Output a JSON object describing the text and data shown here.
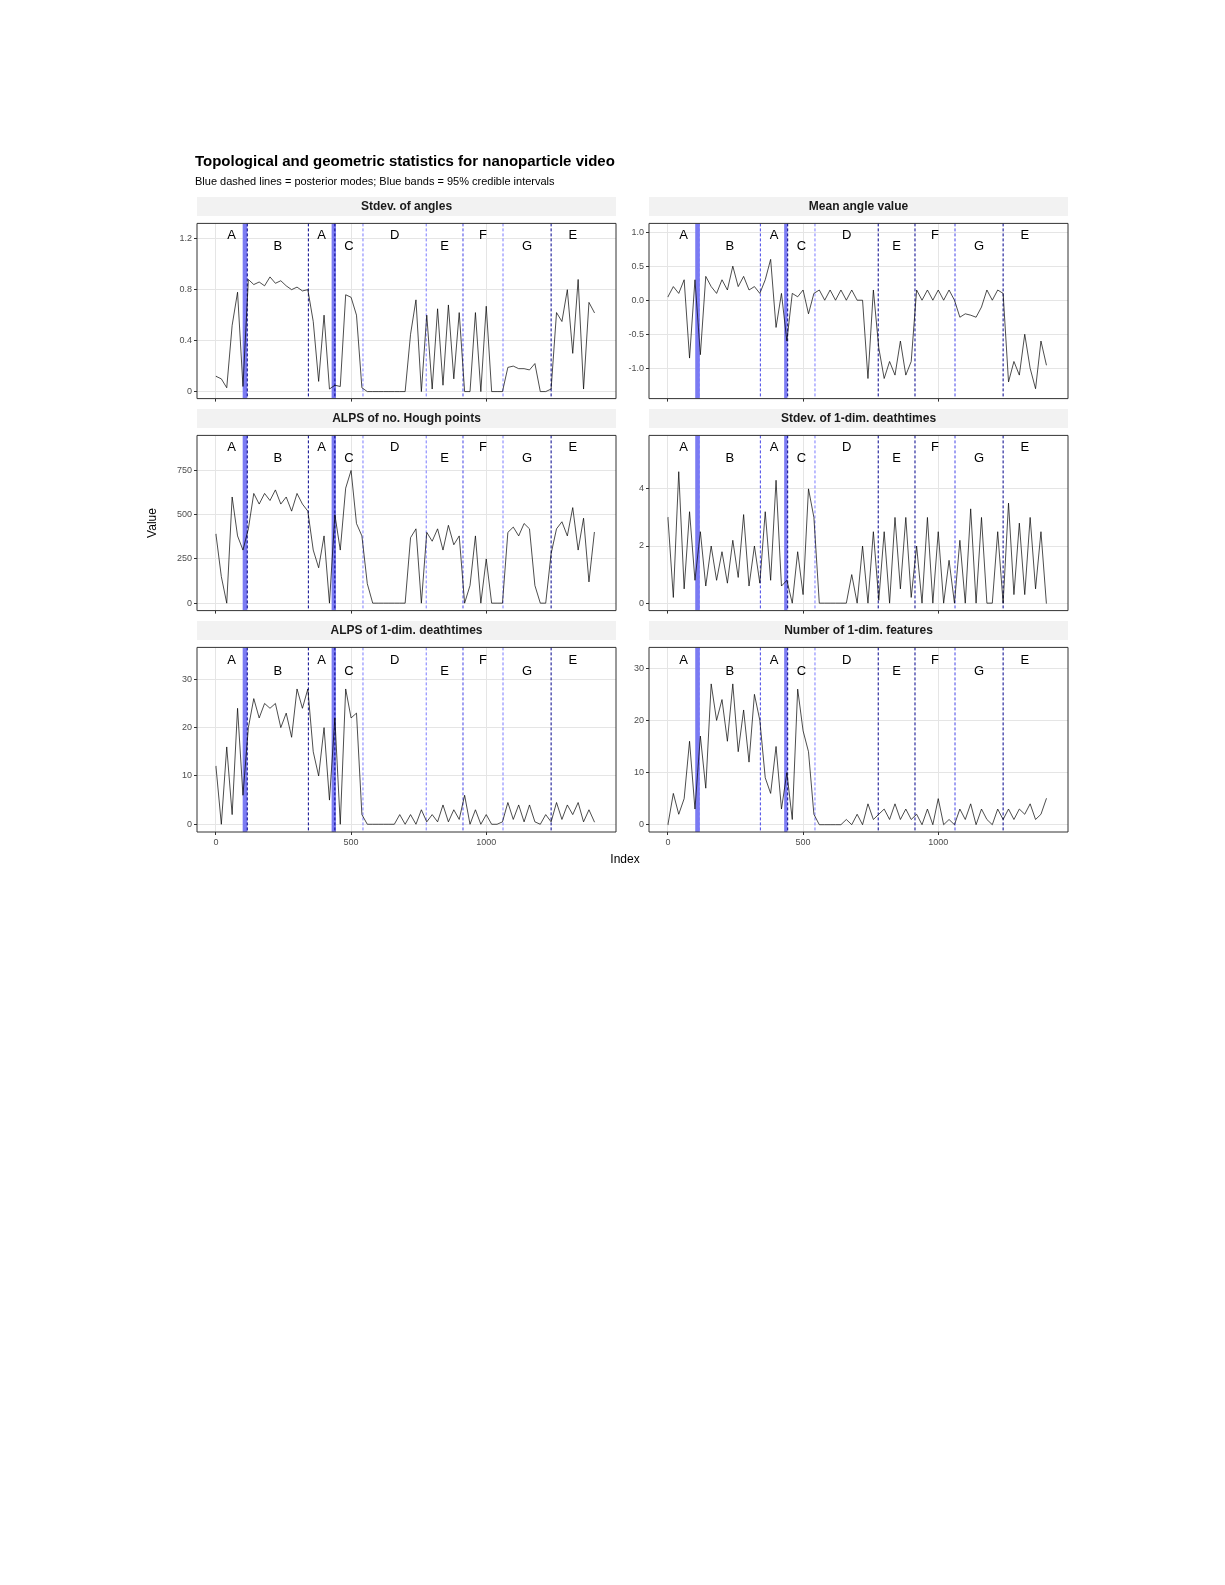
{
  "chart_data": [
    {
      "type": "other",
      "title": "Topological and geometric statistics for nanoparticle video",
      "subtitle": "Blue dashed lines = posterior modes; Blue bands = 95% credible intervals"
    },
    {
      "type": "line",
      "title": "Stdev. of angles",
      "color": "#000000",
      "grid": true,
      "legend": false,
      "tick_labels": "y",
      "xlim": [
        -70,
        1480
      ],
      "ylim": [
        -0.055,
        1.32
      ],
      "xticks": [
        0,
        500,
        1000
      ],
      "yticks": [
        0,
        0.4,
        0.8,
        1.2
      ],
      "x": [
        0,
        20,
        40,
        60,
        80,
        100,
        120,
        140,
        160,
        180,
        200,
        220,
        240,
        260,
        280,
        300,
        320,
        340,
        360,
        380,
        400,
        420,
        440,
        460,
        480,
        500,
        520,
        540,
        560,
        580,
        600,
        620,
        640,
        660,
        680,
        700,
        720,
        740,
        760,
        780,
        800,
        820,
        840,
        860,
        880,
        900,
        920,
        940,
        960,
        980,
        1000,
        1020,
        1040,
        1060,
        1080,
        1100,
        1120,
        1140,
        1160,
        1180,
        1200,
        1220,
        1240,
        1260,
        1280,
        1300,
        1320,
        1340,
        1360,
        1380,
        1400
      ],
      "values": [
        0.12,
        0.1,
        0.03,
        0.52,
        0.78,
        0.04,
        0.88,
        0.84,
        0.86,
        0.83,
        0.9,
        0.85,
        0.87,
        0.83,
        0.8,
        0.82,
        0.79,
        0.8,
        0.55,
        0.08,
        0.6,
        0.02,
        0.05,
        0.04,
        0.76,
        0.74,
        0.6,
        0.03,
        0,
        0,
        0,
        0,
        0,
        0,
        0,
        0,
        0.45,
        0.72,
        0,
        0.6,
        0.02,
        0.65,
        0.05,
        0.68,
        0.1,
        0.62,
        0,
        0,
        0.62,
        0,
        0.67,
        0,
        0,
        0,
        0.19,
        0.2,
        0.18,
        0.18,
        0.17,
        0.22,
        0,
        0,
        0.02,
        0.62,
        0.55,
        0.8,
        0.3,
        0.88,
        0.02,
        0.7,
        0.62
      ],
      "bands": [
        {
          "axis": "x",
          "from": 99,
          "to": 116,
          "color": "#7b7bf2"
        },
        {
          "axis": "x",
          "from": 428,
          "to": 444,
          "color": "#7b7bf2"
        }
      ],
      "ref_lines": [
        {
          "axis": "x",
          "value": 116,
          "color": "#00008b",
          "line_style": "dashed"
        },
        {
          "axis": "x",
          "value": 342,
          "color": "#00008b",
          "line_style": "dashed"
        },
        {
          "axis": "x",
          "value": 440,
          "color": "#00008b",
          "line_style": "dashed"
        },
        {
          "axis": "x",
          "value": 544,
          "color": "#7b7bff",
          "line_style": "dashed"
        },
        {
          "axis": "x",
          "value": 778,
          "color": "#7b7bff",
          "line_style": "dashed"
        },
        {
          "axis": "x",
          "value": 914,
          "color": "#4545e6",
          "line_style": "dashed"
        },
        {
          "axis": "x",
          "value": 1062,
          "color": "#7b7bff",
          "line_style": "dashed"
        },
        {
          "axis": "x",
          "value": 1240,
          "color": "#00008b",
          "line_style": "dashed"
        }
      ],
      "annotations": [
        "A",
        "B",
        "A",
        "C",
        "D",
        "E",
        "F",
        "G",
        "E"
      ]
    },
    {
      "type": "line",
      "title": "Mean angle value",
      "color": "#000000",
      "grid": true,
      "legend": false,
      "tick_labels": "y",
      "xlim": [
        -70,
        1480
      ],
      "ylim": [
        -1.445,
        1.128
      ],
      "xticks": [
        0,
        500,
        1000
      ],
      "yticks": [
        {
          "value": -1,
          "label": "-1.0"
        },
        {
          "value": -0.5,
          "label": "-0.5"
        },
        {
          "value": 0,
          "label": "0.0"
        },
        {
          "value": 0.5,
          "label": "0.5"
        },
        {
          "value": 1,
          "label": "1.0"
        }
      ],
      "x": [
        0,
        20,
        40,
        60,
        80,
        100,
        120,
        140,
        160,
        180,
        200,
        220,
        240,
        260,
        280,
        300,
        320,
        340,
        360,
        380,
        400,
        420,
        440,
        460,
        480,
        500,
        520,
        540,
        560,
        580,
        600,
        620,
        640,
        660,
        680,
        700,
        720,
        740,
        760,
        780,
        800,
        820,
        840,
        860,
        880,
        900,
        920,
        940,
        960,
        980,
        1000,
        1020,
        1040,
        1060,
        1080,
        1100,
        1120,
        1140,
        1160,
        1180,
        1200,
        1220,
        1240,
        1260,
        1280,
        1300,
        1320,
        1340,
        1360,
        1380,
        1400
      ],
      "values": [
        0.05,
        0.2,
        0.1,
        0.3,
        -0.85,
        0.3,
        -0.8,
        0.35,
        0.2,
        0.1,
        0.3,
        0.15,
        0.5,
        0.2,
        0.35,
        0.15,
        0.2,
        0.1,
        0.3,
        0.6,
        -0.4,
        0.1,
        -0.6,
        0.1,
        0.05,
        0.15,
        -0.2,
        0.1,
        0.15,
        0,
        0.15,
        0,
        0.15,
        0,
        0.15,
        0,
        0,
        -1.15,
        0.15,
        -0.7,
        -1.15,
        -0.9,
        -1.1,
        -0.6,
        -1.1,
        -0.9,
        0.15,
        0,
        0.15,
        0,
        0.15,
        0,
        0.15,
        0,
        -0.25,
        -0.2,
        -0.22,
        -0.25,
        -0.1,
        0.15,
        0,
        0.15,
        0.1,
        -1.2,
        -0.9,
        -1.1,
        -0.5,
        -1.0,
        -1.3,
        -0.6,
        -0.95
      ],
      "bands": [
        {
          "axis": "x",
          "from": 101,
          "to": 118,
          "color": "#7b7bf2"
        },
        {
          "axis": "x",
          "from": 430,
          "to": 442,
          "color": "#7b7bf2"
        }
      ],
      "ref_lines": [
        {
          "axis": "x",
          "value": 116,
          "color": "#7b7bff",
          "line_style": "dashed"
        },
        {
          "axis": "x",
          "value": 342,
          "color": "#4545e6",
          "line_style": "dashed"
        },
        {
          "axis": "x",
          "value": 443,
          "color": "#00008b",
          "line_style": "dashed"
        },
        {
          "axis": "x",
          "value": 544,
          "color": "#7b7bff",
          "line_style": "dashed"
        },
        {
          "axis": "x",
          "value": 778,
          "color": "#00008b",
          "line_style": "dashed"
        },
        {
          "axis": "x",
          "value": 914,
          "color": "#00008b",
          "line_style": "dashed"
        },
        {
          "axis": "x",
          "value": 1062,
          "color": "#4545e6",
          "line_style": "dashed"
        },
        {
          "axis": "x",
          "value": 1240,
          "color": "#00008b",
          "line_style": "dashed"
        }
      ],
      "annotations": [
        "A",
        "B",
        "A",
        "C",
        "D",
        "E",
        "F",
        "G",
        "E"
      ]
    },
    {
      "type": "line",
      "title": "ALPS of no. Hough points",
      "ylabel": "Value",
      "color": "#000000",
      "grid": true,
      "legend": false,
      "tick_labels": "y",
      "xlim": [
        -70,
        1480
      ],
      "ylim": [
        -42,
        948
      ],
      "xticks": [
        0,
        500,
        1000
      ],
      "yticks": [
        0,
        250,
        500,
        750
      ],
      "x": [
        0,
        20,
        40,
        60,
        80,
        100,
        120,
        140,
        160,
        180,
        200,
        220,
        240,
        260,
        280,
        300,
        320,
        340,
        360,
        380,
        400,
        420,
        440,
        460,
        480,
        500,
        520,
        540,
        560,
        580,
        600,
        620,
        640,
        660,
        680,
        700,
        720,
        740,
        760,
        780,
        800,
        820,
        840,
        860,
        880,
        900,
        920,
        940,
        960,
        980,
        1000,
        1020,
        1040,
        1060,
        1080,
        1100,
        1120,
        1140,
        1160,
        1180,
        1200,
        1220,
        1240,
        1260,
        1280,
        1300,
        1320,
        1340,
        1360,
        1380,
        1400
      ],
      "values": [
        390,
        150,
        0,
        600,
        380,
        300,
        420,
        620,
        560,
        620,
        580,
        640,
        560,
        600,
        520,
        620,
        560,
        520,
        300,
        200,
        380,
        0,
        500,
        300,
        650,
        750,
        450,
        380,
        110,
        0,
        0,
        0,
        0,
        0,
        0,
        0,
        370,
        420,
        0,
        400,
        350,
        420,
        300,
        440,
        330,
        380,
        0,
        100,
        380,
        0,
        250,
        0,
        0,
        0,
        400,
        430,
        380,
        450,
        420,
        100,
        0,
        0,
        280,
        420,
        460,
        380,
        540,
        300,
        480,
        120,
        400
      ],
      "bands": [
        {
          "axis": "x",
          "from": 99,
          "to": 116,
          "color": "#7b7bf2"
        },
        {
          "axis": "x",
          "from": 428,
          "to": 444,
          "color": "#7b7bf2"
        }
      ],
      "ref_lines": [
        {
          "axis": "x",
          "value": 116,
          "color": "#00008b",
          "line_style": "dashed"
        },
        {
          "axis": "x",
          "value": 342,
          "color": "#00008b",
          "line_style": "dashed"
        },
        {
          "axis": "x",
          "value": 440,
          "color": "#00008b",
          "line_style": "dashed"
        },
        {
          "axis": "x",
          "value": 544,
          "color": "#7b7bff",
          "line_style": "dashed"
        },
        {
          "axis": "x",
          "value": 778,
          "color": "#7b7bff",
          "line_style": "dashed"
        },
        {
          "axis": "x",
          "value": 914,
          "color": "#4545e6",
          "line_style": "dashed"
        },
        {
          "axis": "x",
          "value": 1062,
          "color": "#7b7bff",
          "line_style": "dashed"
        },
        {
          "axis": "x",
          "value": 1240,
          "color": "#00008b",
          "line_style": "dashed"
        }
      ],
      "annotations": [
        "A",
        "B",
        "A",
        "C",
        "D",
        "E",
        "F",
        "G",
        "E"
      ]
    },
    {
      "type": "line",
      "title": "Stdev. of 1-dim. deathtimes",
      "color": "#000000",
      "grid": true,
      "legend": false,
      "tick_labels": "y",
      "xlim": [
        -70,
        1480
      ],
      "ylim": [
        -0.26,
        5.87
      ],
      "xticks": [
        0,
        500,
        1000
      ],
      "yticks": [
        0,
        2,
        4
      ],
      "x": [
        0,
        20,
        40,
        60,
        80,
        100,
        120,
        140,
        160,
        180,
        200,
        220,
        240,
        260,
        280,
        300,
        320,
        340,
        360,
        380,
        400,
        420,
        440,
        460,
        480,
        500,
        520,
        540,
        560,
        580,
        600,
        620,
        640,
        660,
        680,
        700,
        720,
        740,
        760,
        780,
        800,
        820,
        840,
        860,
        880,
        900,
        920,
        940,
        960,
        980,
        1000,
        1020,
        1040,
        1060,
        1080,
        1100,
        1120,
        1140,
        1160,
        1180,
        1200,
        1220,
        1240,
        1260,
        1280,
        1300,
        1320,
        1340,
        1360,
        1380,
        1400
      ],
      "values": [
        3.0,
        0.2,
        4.6,
        0.5,
        3.2,
        0.8,
        2.5,
        0.6,
        2.0,
        0.8,
        1.8,
        0.7,
        2.2,
        0.9,
        3.1,
        0.6,
        2.0,
        0.7,
        3.2,
        0.8,
        4.3,
        0.6,
        0.8,
        0,
        1.8,
        0.3,
        4.0,
        3.0,
        0,
        0,
        0,
        0,
        0,
        0,
        1.0,
        0,
        2.0,
        0,
        2.5,
        0.1,
        2.5,
        0,
        3.0,
        0.5,
        3.0,
        0.2,
        2.0,
        0,
        3.0,
        0,
        2.5,
        0,
        1.5,
        0,
        2.2,
        0,
        3.3,
        0,
        3.0,
        0,
        0,
        2.5,
        0,
        3.5,
        0.3,
        2.8,
        0.3,
        3.0,
        0.5,
        2.5,
        0
      ],
      "bands": [
        {
          "axis": "x",
          "from": 101,
          "to": 118,
          "color": "#7b7bf2"
        },
        {
          "axis": "x",
          "from": 430,
          "to": 442,
          "color": "#7b7bf2"
        }
      ],
      "ref_lines": [
        {
          "axis": "x",
          "value": 116,
          "color": "#7b7bff",
          "line_style": "dashed"
        },
        {
          "axis": "x",
          "value": 342,
          "color": "#4545e6",
          "line_style": "dashed"
        },
        {
          "axis": "x",
          "value": 443,
          "color": "#00008b",
          "line_style": "dashed"
        },
        {
          "axis": "x",
          "value": 544,
          "color": "#7b7bff",
          "line_style": "dashed"
        },
        {
          "axis": "x",
          "value": 778,
          "color": "#00008b",
          "line_style": "dashed"
        },
        {
          "axis": "x",
          "value": 914,
          "color": "#00008b",
          "line_style": "dashed"
        },
        {
          "axis": "x",
          "value": 1062,
          "color": "#4545e6",
          "line_style": "dashed"
        },
        {
          "axis": "x",
          "value": 1240,
          "color": "#00008b",
          "line_style": "dashed"
        }
      ],
      "annotations": [
        "A",
        "B",
        "A",
        "C",
        "D",
        "E",
        "F",
        "G",
        "E"
      ]
    },
    {
      "type": "line",
      "title": "ALPS of 1-dim. deathtimes",
      "xlabel": "Index",
      "color": "#000000",
      "grid": true,
      "legend": false,
      "xlim": [
        -70,
        1480
      ],
      "ylim": [
        -1.6,
        36.6
      ],
      "xticks": [
        0,
        500,
        1000
      ],
      "yticks": [
        0,
        10,
        20,
        30
      ],
      "x": [
        0,
        20,
        40,
        60,
        80,
        100,
        120,
        140,
        160,
        180,
        200,
        220,
        240,
        260,
        280,
        300,
        320,
        340,
        360,
        380,
        400,
        420,
        440,
        460,
        480,
        500,
        520,
        540,
        560,
        580,
        600,
        620,
        640,
        660,
        680,
        700,
        720,
        740,
        760,
        780,
        800,
        820,
        840,
        860,
        880,
        900,
        920,
        940,
        960,
        980,
        1000,
        1020,
        1040,
        1060,
        1080,
        1100,
        1120,
        1140,
        1160,
        1180,
        1200,
        1220,
        1240,
        1260,
        1280,
        1300,
        1320,
        1340,
        1360,
        1380,
        1400
      ],
      "values": [
        12,
        0,
        16,
        2,
        24,
        6,
        20,
        26,
        22,
        25,
        24,
        25,
        20,
        23,
        18,
        28,
        24,
        28,
        15,
        10,
        20,
        5,
        22,
        0,
        28,
        22,
        23,
        2,
        0,
        0,
        0,
        0,
        0,
        0,
        2,
        0,
        2,
        0,
        3,
        0.5,
        2,
        0.5,
        4,
        0.5,
        3,
        1,
        6,
        0,
        3,
        0,
        2,
        0,
        0,
        0.5,
        4.5,
        1,
        4,
        0.5,
        4,
        0.5,
        0,
        2,
        0.5,
        4.5,
        1,
        4,
        2,
        4.5,
        0.5,
        3,
        0.5
      ],
      "bands": [
        {
          "axis": "x",
          "from": 99,
          "to": 116,
          "color": "#7b7bf2"
        },
        {
          "axis": "x",
          "from": 428,
          "to": 444,
          "color": "#7b7bf2"
        }
      ],
      "ref_lines": [
        {
          "axis": "x",
          "value": 116,
          "color": "#00008b",
          "line_style": "dashed"
        },
        {
          "axis": "x",
          "value": 342,
          "color": "#00008b",
          "line_style": "dashed"
        },
        {
          "axis": "x",
          "value": 440,
          "color": "#00008b",
          "line_style": "dashed"
        },
        {
          "axis": "x",
          "value": 544,
          "color": "#7b7bff",
          "line_style": "dashed"
        },
        {
          "axis": "x",
          "value": 778,
          "color": "#7b7bff",
          "line_style": "dashed"
        },
        {
          "axis": "x",
          "value": 914,
          "color": "#4545e6",
          "line_style": "dashed"
        },
        {
          "axis": "x",
          "value": 1062,
          "color": "#7b7bff",
          "line_style": "dashed"
        },
        {
          "axis": "x",
          "value": 1240,
          "color": "#00008b",
          "line_style": "dashed"
        }
      ],
      "annotations": [
        "A",
        "B",
        "A",
        "C",
        "D",
        "E",
        "F",
        "G",
        "E"
      ]
    },
    {
      "type": "line",
      "title": "Number of 1-dim. features",
      "color": "#000000",
      "grid": true,
      "legend": false,
      "xlim": [
        -70,
        1480
      ],
      "ylim": [
        -1.4,
        34
      ],
      "xticks": [
        0,
        500,
        1000
      ],
      "yticks": [
        0,
        10,
        20,
        30
      ],
      "x": [
        0,
        20,
        40,
        60,
        80,
        100,
        120,
        140,
        160,
        180,
        200,
        220,
        240,
        260,
        280,
        300,
        320,
        340,
        360,
        380,
        400,
        420,
        440,
        460,
        480,
        500,
        520,
        540,
        560,
        580,
        600,
        620,
        640,
        660,
        680,
        700,
        720,
        740,
        760,
        780,
        800,
        820,
        840,
        860,
        880,
        900,
        920,
        940,
        960,
        980,
        1000,
        1020,
        1040,
        1060,
        1080,
        1100,
        1120,
        1140,
        1160,
        1180,
        1200,
        1220,
        1240,
        1260,
        1280,
        1300,
        1320,
        1340,
        1360,
        1380,
        1400
      ],
      "values": [
        0,
        6,
        2,
        5,
        16,
        3,
        17,
        7,
        27,
        20,
        24,
        16,
        27,
        14,
        22,
        12,
        25,
        20,
        9,
        6,
        15,
        3,
        10,
        1,
        26,
        18,
        14,
        2,
        0,
        0,
        0,
        0,
        0,
        1,
        0,
        2,
        0,
        4,
        1,
        2,
        3,
        1,
        4,
        1,
        3,
        1,
        2,
        0,
        3,
        0,
        5,
        0,
        1,
        0,
        3,
        1,
        4,
        0,
        3,
        1,
        0,
        3,
        1,
        3,
        1,
        3,
        2,
        4,
        1,
        2,
        5
      ],
      "bands": [
        {
          "axis": "x",
          "from": 101,
          "to": 118,
          "color": "#7b7bf2"
        },
        {
          "axis": "x",
          "from": 430,
          "to": 442,
          "color": "#7b7bf2"
        }
      ],
      "ref_lines": [
        {
          "axis": "x",
          "value": 116,
          "color": "#7b7bff",
          "line_style": "dashed"
        },
        {
          "axis": "x",
          "value": 342,
          "color": "#4545e6",
          "line_style": "dashed"
        },
        {
          "axis": "x",
          "value": 443,
          "color": "#00008b",
          "line_style": "dashed"
        },
        {
          "axis": "x",
          "value": 544,
          "color": "#7b7bff",
          "line_style": "dashed"
        },
        {
          "axis": "x",
          "value": 778,
          "color": "#00008b",
          "line_style": "dashed"
        },
        {
          "axis": "x",
          "value": 914,
          "color": "#00008b",
          "line_style": "dashed"
        },
        {
          "axis": "x",
          "value": 1062,
          "color": "#4545e6",
          "line_style": "dashed"
        },
        {
          "axis": "x",
          "value": 1240,
          "color": "#00008b",
          "line_style": "dashed"
        }
      ],
      "annotations": [
        "A",
        "B",
        "A",
        "C",
        "D",
        "E",
        "F",
        "G",
        "E"
      ]
    }
  ]
}
